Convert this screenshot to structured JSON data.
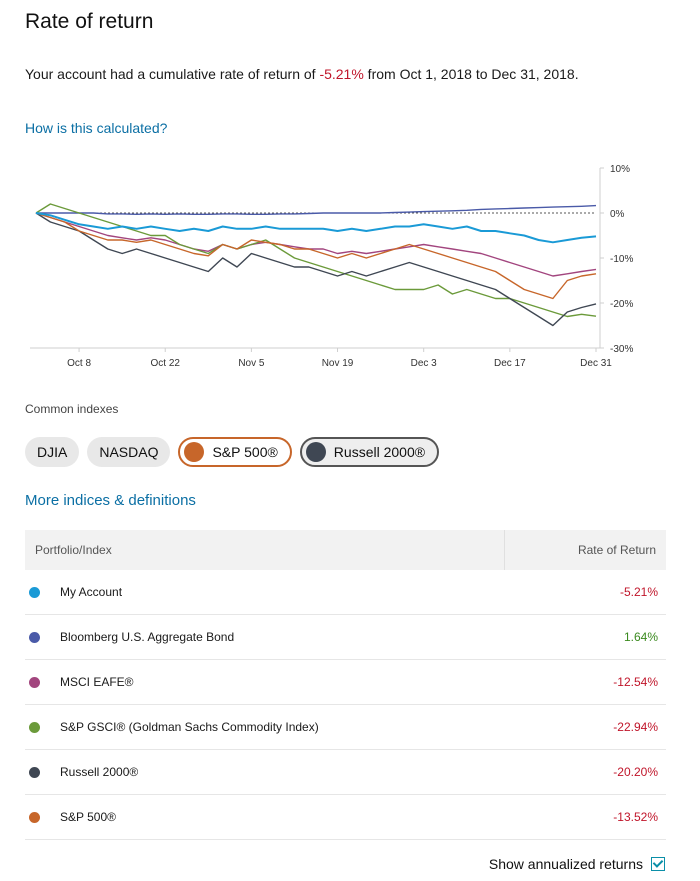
{
  "title": "Rate of return",
  "summary": {
    "prefix": "Your account had a cumulative rate of return of ",
    "value": "-5.21%",
    "suffix": " from Oct 1, 2018 to Dec 31, 2018."
  },
  "how_link": "How is this calculated?",
  "chart_data": {
    "type": "line",
    "x_ticks": [
      "Oct 8",
      "Oct 22",
      "Nov 5",
      "Nov 19",
      "Dec 3",
      "Dec 17",
      "Dec 31"
    ],
    "y_ticks": [
      "10%",
      "0%",
      "-10%",
      "-20%",
      "-30%"
    ],
    "ylim": [
      -30,
      10
    ],
    "x": [
      "Oct 1",
      "Oct 3",
      "Oct 5",
      "Oct 8",
      "Oct 10",
      "Oct 12",
      "Oct 15",
      "Oct 17",
      "Oct 19",
      "Oct 22",
      "Oct 24",
      "Oct 26",
      "Oct 29",
      "Oct 31",
      "Nov 2",
      "Nov 5",
      "Nov 7",
      "Nov 9",
      "Nov 12",
      "Nov 14",
      "Nov 16",
      "Nov 19",
      "Nov 21",
      "Nov 23",
      "Nov 26",
      "Nov 28",
      "Nov 30",
      "Dec 3",
      "Dec 5",
      "Dec 7",
      "Dec 10",
      "Dec 12",
      "Dec 14",
      "Dec 17",
      "Dec 19",
      "Dec 21",
      "Dec 24",
      "Dec 26",
      "Dec 28",
      "Dec 31"
    ],
    "series": [
      {
        "key": "account",
        "color": "#1a9ad6",
        "values": [
          0,
          -0.5,
          -1.5,
          -2.5,
          -3,
          -3.5,
          -3,
          -3.5,
          -3,
          -3.5,
          -4,
          -3.5,
          -4,
          -3,
          -3.5,
          -3.5,
          -3,
          -3.5,
          -3.5,
          -3.5,
          -3.5,
          -4,
          -3.5,
          -4,
          -3.5,
          -3,
          -3,
          -2.5,
          -3,
          -3.5,
          -3,
          -4,
          -4,
          -4.5,
          -5,
          -6,
          -6.5,
          -6,
          -5.5,
          -5.21
        ]
      },
      {
        "key": "bond",
        "color": "#4a5aa8",
        "values": [
          0,
          0,
          0,
          0,
          0,
          -0.2,
          -0.2,
          -0.3,
          -0.2,
          -0.3,
          -0.2,
          -0.3,
          -0.3,
          -0.2,
          -0.2,
          -0.3,
          -0.3,
          -0.2,
          -0.2,
          -0.1,
          0,
          0,
          0,
          0,
          0,
          0.1,
          0.2,
          0.3,
          0.4,
          0.5,
          0.6,
          0.8,
          0.9,
          1,
          1.1,
          1.2,
          1.3,
          1.4,
          1.5,
          1.64
        ]
      },
      {
        "key": "eafe",
        "color": "#a2457e",
        "values": [
          0,
          -1,
          -2,
          -3,
          -4,
          -5,
          -5.5,
          -6,
          -5.5,
          -6,
          -7,
          -8,
          -8.5,
          -7,
          -8,
          -7,
          -6.5,
          -7,
          -7.5,
          -8,
          -8,
          -9,
          -8.5,
          -9,
          -8.5,
          -8,
          -7.5,
          -7,
          -7.5,
          -8,
          -8.5,
          -9,
          -10,
          -11,
          -12,
          -13,
          -14,
          -13.5,
          -13,
          -12.54
        ]
      },
      {
        "key": "gsci",
        "color": "#6b9a3a",
        "values": [
          0,
          2,
          1,
          0,
          -1,
          -2,
          -3,
          -4,
          -5,
          -5,
          -7,
          -8,
          -9,
          -7,
          -8,
          -7,
          -6,
          -8,
          -10,
          -11,
          -12,
          -13,
          -14,
          -15,
          -16,
          -17,
          -17,
          -17,
          -16,
          -18,
          -17,
          -18,
          -19,
          -19,
          -20,
          -21,
          -22,
          -23,
          -22.5,
          -22.94
        ]
      },
      {
        "key": "russell",
        "color": "#3f4753",
        "values": [
          0,
          -2,
          -3,
          -4,
          -6,
          -8,
          -9,
          -8,
          -9,
          -10,
          -11,
          -12,
          -13,
          -10,
          -12,
          -9,
          -10,
          -11,
          -12,
          -12,
          -13,
          -14,
          -13,
          -14,
          -13,
          -12,
          -11,
          -12,
          -13,
          -14,
          -15,
          -16,
          -17,
          -19,
          -21,
          -23,
          -25,
          -22,
          -21,
          -20.2
        ]
      },
      {
        "key": "sp500",
        "color": "#c7662a",
        "values": [
          0,
          -1,
          -2,
          -4,
          -5,
          -6,
          -6,
          -6.5,
          -6,
          -7,
          -8,
          -9,
          -9.5,
          -7,
          -8,
          -6,
          -6.5,
          -7,
          -8,
          -8,
          -9,
          -10,
          -9,
          -10,
          -9,
          -8,
          -7,
          -8,
          -9,
          -10,
          -11,
          -12,
          -13,
          -15,
          -17,
          -18,
          -19,
          -15,
          -14,
          -13.52
        ]
      }
    ]
  },
  "indexes": {
    "label": "Common indexes",
    "chips": [
      {
        "label": "DJIA",
        "active": false,
        "color": ""
      },
      {
        "label": "NASDAQ",
        "active": false,
        "color": ""
      },
      {
        "label": "S&P 500®",
        "active": true,
        "color": "#c7662a"
      },
      {
        "label": "Russell 2000®",
        "active": true,
        "color": "#3f4753"
      }
    ]
  },
  "more_link": "More indices & definitions",
  "table": {
    "col_name": "Portfolio/Index",
    "col_value": "Rate of Return",
    "rows": [
      {
        "name": "My Account",
        "value": "-5.21%",
        "color": "#1a9ad6",
        "sign": "neg"
      },
      {
        "name": "Bloomberg U.S. Aggregate Bond",
        "value": "1.64%",
        "color": "#4a5aa8",
        "sign": "pos"
      },
      {
        "name": "MSCI EAFE®",
        "value": "-12.54%",
        "color": "#a2457e",
        "sign": "neg"
      },
      {
        "name": "S&P GSCI® (Goldman Sachs Commodity Index)",
        "value": "-22.94%",
        "color": "#6b9a3a",
        "sign": "neg"
      },
      {
        "name": "Russell 2000®",
        "value": "-20.20%",
        "color": "#3f4753",
        "sign": "neg"
      },
      {
        "name": "S&P 500®",
        "value": "-13.52%",
        "color": "#c7662a",
        "sign": "neg"
      }
    ]
  },
  "annualized": {
    "label": "Show annualized returns",
    "checked": true
  }
}
